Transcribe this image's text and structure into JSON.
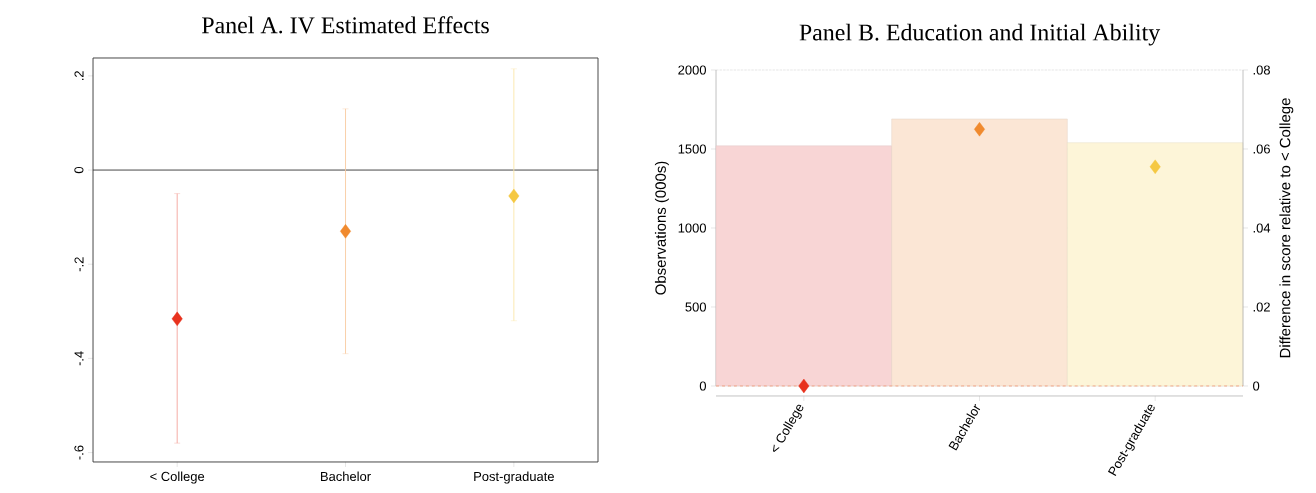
{
  "chart_data": [
    {
      "type": "scatter",
      "title": "Panel A. IV Estimated Effects",
      "categories": [
        "< College",
        "Bachelor",
        "Post-graduate"
      ],
      "values": [
        -0.316,
        -0.13,
        -0.055
      ],
      "errors": [
        [
          -0.58,
          -0.05
        ],
        [
          -0.39,
          0.13
        ],
        [
          -0.32,
          0.215
        ]
      ],
      "colors": [
        "#e8321e",
        "#f08a2e",
        "#f5c842"
      ],
      "marker": "diamond",
      "ylim": [
        -0.62,
        0.238
      ],
      "yticks": [
        {
          "value": -0.6,
          "label": "-.6"
        },
        {
          "value": -0.4,
          "label": "-.4"
        },
        {
          "value": -0.2,
          "label": "-.2"
        },
        0,
        {
          "value": 0.2,
          "label": ".2"
        }
      ],
      "ref_lines": [
        {
          "axis": "y",
          "value": 0,
          "color": "#333333"
        }
      ],
      "grid": false
    },
    {
      "type": "bar",
      "title": "Panel B. Education and Initial Ability",
      "categories": [
        "< College",
        "Bachelor",
        "Post-graduate"
      ],
      "series": [
        {
          "type": "bar",
          "colors": [
            "#f8d5d5",
            "#fbe6d5",
            "#fdf5d8"
          ],
          "values": [
            1520,
            1690,
            1540
          ]
        },
        {
          "type": "scatter",
          "axis": "y2",
          "marker": "diamond",
          "colors": [
            "#e8321e",
            "#f08a2e",
            "#f5c842"
          ],
          "values": [
            0,
            0.065,
            0.0555
          ]
        }
      ],
      "ylabel": "Observations (000s)",
      "y2label": "Difference in score relative to < College",
      "ylim": [
        0,
        2000
      ],
      "yticks": [
        0,
        500,
        1000,
        1500,
        2000
      ],
      "y2lim": [
        0,
        0.08
      ],
      "y2ticks": [
        0,
        {
          "value": 0.02,
          "label": ".02"
        },
        {
          "value": 0.04,
          "label": ".04"
        },
        {
          "value": 0.06,
          "label": ".06"
        },
        {
          "value": 0.08,
          "label": ".08"
        }
      ],
      "ref_lines": [
        {
          "axis": "y2",
          "value": 0,
          "color": "#f0a080",
          "line_style": "dashed"
        }
      ],
      "grid": "y"
    }
  ]
}
